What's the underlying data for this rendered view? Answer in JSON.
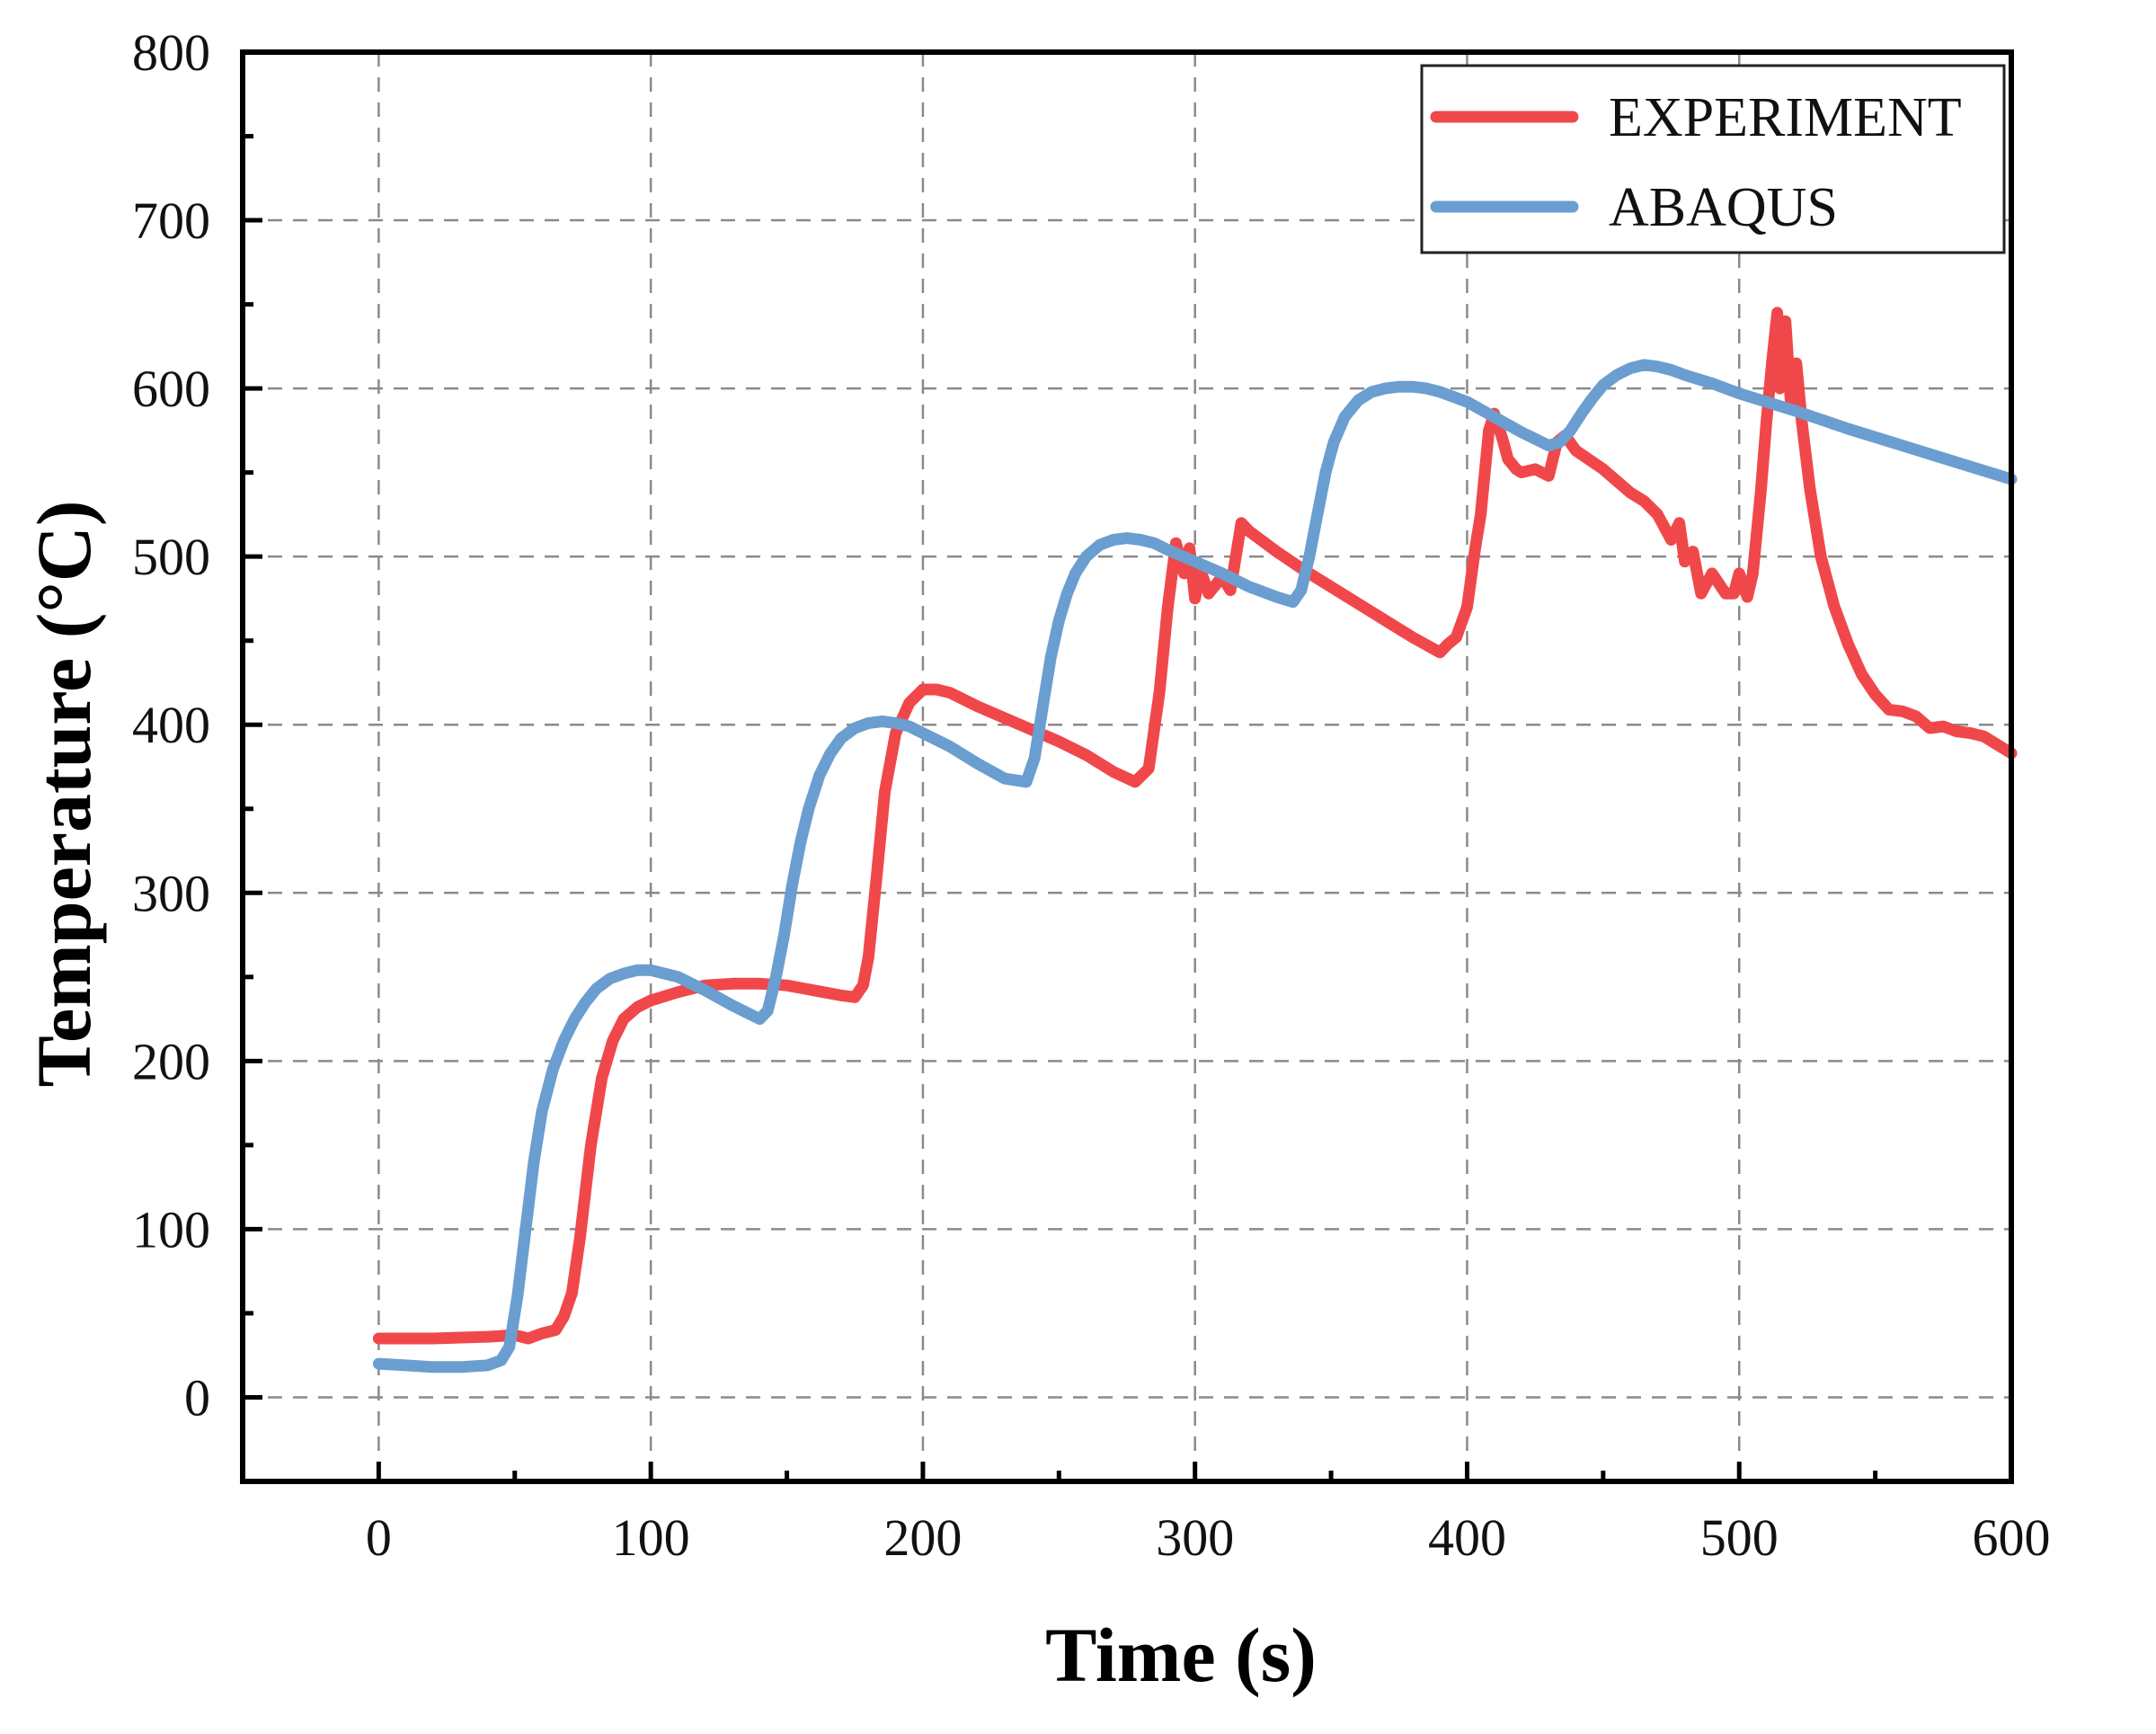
{
  "chart_data": {
    "type": "line",
    "title": "",
    "xlabel": "Time (s)",
    "ylabel": "Temperature (°C)",
    "xlim": [
      -50,
      600
    ],
    "ylim": [
      -50,
      800
    ],
    "xticks": [
      0,
      100,
      200,
      300,
      400,
      500,
      600
    ],
    "yticks": [
      0,
      100,
      200,
      300,
      400,
      500,
      600,
      700,
      800
    ],
    "grid": true,
    "legend_position": "top-right",
    "series": [
      {
        "name": "EXPERIMENT",
        "color": "#f0484a",
        "x": [
          0,
          20,
          40,
          50,
          55,
          60,
          65,
          68,
          71,
          74,
          78,
          82,
          86,
          90,
          95,
          100,
          110,
          120,
          130,
          140,
          150,
          160,
          170,
          175,
          178,
          180,
          183,
          186,
          190,
          195,
          200,
          205,
          210,
          220,
          230,
          240,
          250,
          260,
          270,
          278,
          283,
          287,
          290,
          293,
          296,
          298,
          300,
          302,
          305,
          310,
          313,
          315,
          317,
          320,
          330,
          340,
          350,
          360,
          370,
          380,
          390,
          393,
          396,
          400,
          403,
          405,
          408,
          410,
          413,
          415,
          418,
          420,
          425,
          430,
          433,
          436,
          440,
          450,
          460,
          465,
          470,
          475,
          478,
          480,
          483,
          486,
          490,
          495,
          498,
          500,
          503,
          505,
          508,
          510,
          512,
          514,
          515,
          517,
          519,
          521,
          523,
          526,
          530,
          535,
          540,
          545,
          550,
          555,
          560,
          565,
          570,
          575,
          580,
          585,
          590,
          595,
          600
        ],
        "values": [
          35,
          35,
          36,
          37,
          35,
          38,
          40,
          48,
          62,
          95,
          150,
          190,
          212,
          225,
          232,
          236,
          241,
          245,
          246,
          246,
          245,
          242,
          239,
          238,
          245,
          262,
          310,
          360,
          395,
          413,
          421,
          421,
          419,
          411,
          404,
          397,
          390,
          382,
          372,
          366,
          374,
          420,
          470,
          508,
          490,
          505,
          475,
          492,
          478,
          488,
          480,
          500,
          520,
          515,
          503,
          492,
          482,
          472,
          462,
          452,
          443,
          448,
          452,
          470,
          505,
          525,
          575,
          585,
          570,
          558,
          552,
          550,
          552,
          548,
          568,
          572,
          563,
          552,
          538,
          533,
          525,
          510,
          520,
          497,
          503,
          478,
          490,
          478,
          478,
          490,
          476,
          490,
          540,
          580,
          615,
          645,
          600,
          640,
          590,
          615,
          580,
          540,
          500,
          470,
          448,
          430,
          418,
          409,
          408,
          405,
          398,
          399,
          396,
          395,
          393,
          388,
          383
        ]
      },
      {
        "name": "ABAQUS",
        "color": "#6a9ed0",
        "x": [
          0,
          10,
          20,
          30,
          40,
          45,
          48,
          51,
          54,
          57,
          60,
          64,
          68,
          72,
          76,
          80,
          85,
          90,
          95,
          100,
          110,
          120,
          130,
          140,
          143,
          146,
          149,
          152,
          155,
          158,
          162,
          166,
          170,
          175,
          180,
          185,
          190,
          195,
          200,
          210,
          220,
          230,
          238,
          241,
          244,
          247,
          250,
          253,
          256,
          260,
          265,
          270,
          275,
          280,
          285,
          290,
          300,
          310,
          320,
          330,
          336,
          339,
          342,
          345,
          348,
          351,
          355,
          360,
          365,
          370,
          375,
          380,
          385,
          390,
          400,
          410,
          420,
          430,
          434,
          438,
          442,
          446,
          450,
          455,
          460,
          465,
          470,
          475,
          480,
          490,
          500,
          520,
          540,
          560,
          580,
          600
        ],
        "values": [
          20,
          19,
          18,
          18,
          19,
          22,
          30,
          60,
          100,
          140,
          170,
          195,
          212,
          225,
          235,
          243,
          249,
          252,
          254,
          254,
          250,
          242,
          233,
          225,
          230,
          250,
          275,
          305,
          330,
          350,
          370,
          383,
          392,
          398,
          401,
          402,
          401,
          399,
          395,
          387,
          377,
          368,
          366,
          380,
          410,
          440,
          462,
          478,
          490,
          500,
          507,
          510,
          511,
          510,
          508,
          504,
          497,
          490,
          482,
          476,
          473,
          480,
          500,
          525,
          550,
          568,
          583,
          593,
          598,
          600,
          601,
          601,
          600,
          598,
          592,
          583,
          574,
          566,
          568,
          575,
          585,
          594,
          602,
          608,
          612,
          614,
          613,
          611,
          608,
          603,
          597,
          587,
          576,
          566,
          556,
          546
        ]
      }
    ]
  }
}
